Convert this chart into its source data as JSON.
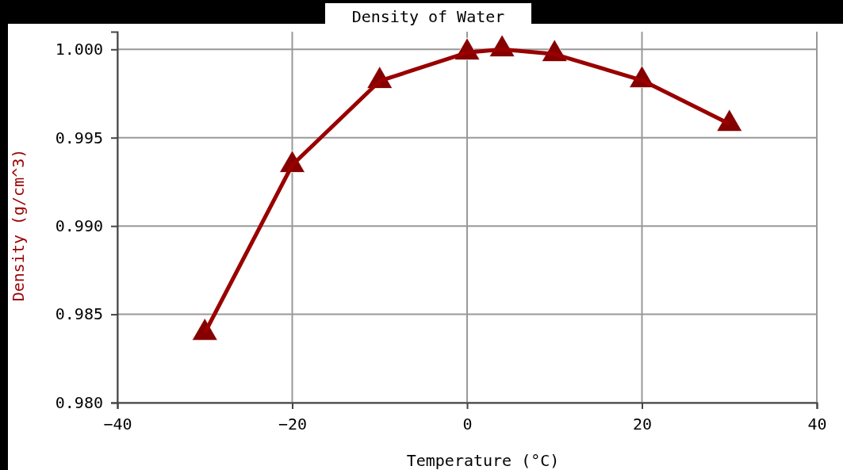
{
  "chart_data": {
    "type": "line",
    "title": "Density of Water",
    "xlabel": "Temperature (°C)",
    "ylabel": "Density  (g/cm^3)",
    "x": [
      -30,
      -20,
      -10,
      0,
      4,
      10,
      20,
      30
    ],
    "series": [
      {
        "color": "#990000",
        "values": [
          0.98395,
          0.99345,
          0.99821,
          0.99982,
          1.0,
          0.99973,
          0.99825,
          0.99578
        ]
      }
    ],
    "xlim": [
      -40,
      40
    ],
    "xticks": [
      -40,
      -20,
      0,
      20,
      40
    ],
    "ylim": [
      0.98,
      1.001
    ],
    "yticks": [
      {
        "value": 0.98,
        "label": "0.980"
      },
      {
        "value": 0.985,
        "label": "0.985"
      },
      {
        "value": 0.99,
        "label": "0.990"
      },
      {
        "value": 0.995,
        "label": "0.995"
      },
      {
        "value": 1.0,
        "label": "1.000"
      }
    ],
    "grid": true,
    "marker": "triangle",
    "line_style": "solid"
  }
}
